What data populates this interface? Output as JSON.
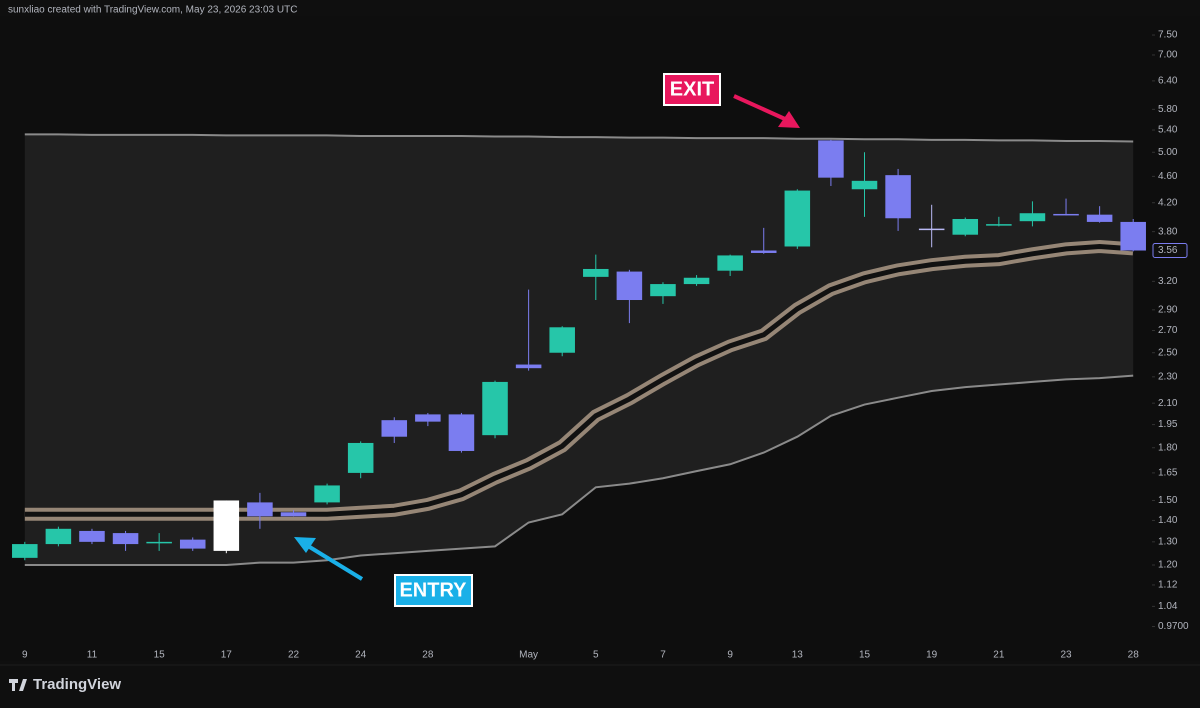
{
  "chart_data": {
    "type": "candlestick",
    "credit": "sunxliao created with TradingView.com, May 23, 2026 23:03 UTC",
    "brand": "TradingView",
    "log_scale": true,
    "categories": [
      "9",
      null,
      "11",
      null,
      "15",
      null,
      "17",
      null,
      "22",
      null,
      "24",
      null,
      "28",
      null,
      null,
      "May",
      null,
      "5",
      null,
      "7",
      null,
      "9",
      null,
      "13",
      null,
      "15",
      null,
      "19",
      null,
      "21",
      null,
      "23",
      null,
      "28"
    ],
    "open": [
      1.23,
      1.29,
      1.35,
      1.34,
      1.3,
      1.31,
      1.26,
      1.49,
      1.44,
      1.49,
      1.65,
      1.98,
      2.02,
      2.02,
      1.88,
      2.4,
      2.5,
      3.25,
      3.31,
      3.04,
      3.17,
      3.32,
      3.56,
      3.61,
      5.21,
      4.4,
      4.62,
      3.84,
      3.76,
      3.89,
      3.94,
      4.04,
      4.03,
      3.93
    ],
    "high": [
      1.3,
      1.37,
      1.36,
      1.35,
      1.34,
      1.32,
      1.5,
      1.54,
      1.45,
      1.59,
      1.84,
      2.0,
      2.03,
      2.03,
      2.27,
      3.11,
      2.74,
      3.51,
      3.33,
      3.19,
      3.27,
      3.51,
      3.85,
      4.4,
      5.22,
      5.0,
      4.72,
      4.17,
      3.99,
      4.0,
      4.22,
      4.26,
      4.15,
      3.97
    ],
    "low": [
      1.22,
      1.28,
      1.29,
      1.26,
      1.26,
      1.26,
      1.25,
      1.36,
      1.42,
      1.48,
      1.62,
      1.83,
      1.94,
      1.77,
      1.86,
      2.35,
      2.47,
      3.0,
      2.77,
      2.96,
      3.15,
      3.26,
      3.52,
      3.58,
      4.45,
      4.0,
      3.81,
      3.6,
      3.74,
      3.87,
      3.87,
      4.02,
      3.92,
      3.55
    ],
    "close": [
      1.29,
      1.36,
      1.3,
      1.29,
      1.3,
      1.27,
      1.5,
      1.42,
      1.42,
      1.58,
      1.83,
      1.87,
      1.97,
      1.78,
      2.26,
      2.37,
      2.73,
      3.34,
      3.0,
      3.17,
      3.24,
      3.5,
      3.53,
      4.38,
      4.58,
      4.53,
      3.98,
      3.83,
      3.97,
      3.9,
      4.05,
      4.02,
      3.93,
      3.56
    ],
    "colors": [
      "#26c6a9",
      "#26c6a9",
      "#7b7df0",
      "#7b7df0",
      "#26c6a9",
      "#7b7df0",
      "#ffffff",
      "#7b7df0",
      "#7b7df0",
      "#26c6a9",
      "#26c6a9",
      "#7b7df0",
      "#7b7df0",
      "#7b7df0",
      "#26c6a9",
      "#7b7df0",
      "#26c6a9",
      "#26c6a9",
      "#7b7df0",
      "#26c6a9",
      "#26c6a9",
      "#26c6a9",
      "#7b7df0",
      "#26c6a9",
      "#7b7df0",
      "#26c6a9",
      "#7b7df0",
      "#b9b9f5",
      "#26c6a9",
      "#26c6a9",
      "#26c6a9",
      "#7b7df0",
      "#7b7df0",
      "#7b7df0"
    ],
    "lines": [
      {
        "color": "#8a8a8a",
        "values": [
          5.32,
          5.32,
          5.31,
          5.31,
          5.31,
          5.31,
          5.3,
          5.3,
          5.3,
          5.3,
          5.29,
          5.29,
          5.29,
          5.29,
          5.28,
          5.28,
          5.27,
          5.27,
          5.26,
          5.26,
          5.25,
          5.25,
          5.25,
          5.24,
          5.24,
          5.23,
          5.23,
          5.22,
          5.22,
          5.21,
          5.21,
          5.2,
          5.2,
          5.19
        ]
      },
      {
        "color": "#c9b29b",
        "values": [
          1.43,
          1.43,
          1.43,
          1.43,
          1.43,
          1.43,
          1.43,
          1.43,
          1.43,
          1.43,
          1.44,
          1.45,
          1.48,
          1.53,
          1.62,
          1.7,
          1.81,
          2.01,
          2.13,
          2.28,
          2.43,
          2.56,
          2.66,
          2.91,
          3.11,
          3.24,
          3.33,
          3.39,
          3.43,
          3.45,
          3.52,
          3.58,
          3.61,
          3.58
        ]
      },
      {
        "color": "#8a8a8a",
        "values": [
          1.2,
          1.2,
          1.2,
          1.2,
          1.2,
          1.2,
          1.2,
          1.21,
          1.21,
          1.22,
          1.24,
          1.25,
          1.26,
          1.27,
          1.28,
          1.39,
          1.43,
          1.57,
          1.59,
          1.62,
          1.66,
          1.7,
          1.77,
          1.87,
          2.01,
          2.09,
          2.14,
          2.19,
          2.22,
          2.24,
          2.26,
          2.28,
          2.29,
          2.31
        ]
      }
    ],
    "last_price": 3.56,
    "annotations": [
      "EXIT",
      "ENTRY"
    ],
    "ylim": [
      0.91,
      7.9
    ],
    "yticks": [
      {
        "value": 7.5,
        "label": "7.50"
      },
      {
        "value": 7.0,
        "label": "7.00"
      },
      {
        "value": 6.4,
        "label": "6.40"
      },
      {
        "value": 5.8,
        "label": "5.80"
      },
      {
        "value": 5.4,
        "label": "5.40"
      },
      {
        "value": 5.0,
        "label": "5.00"
      },
      {
        "value": 4.6,
        "label": "4.60"
      },
      {
        "value": 4.2,
        "label": "4.20"
      },
      {
        "value": 3.8,
        "label": "3.80"
      },
      {
        "value": 3.2,
        "label": "3.20"
      },
      {
        "value": 2.9,
        "label": "2.90"
      },
      {
        "value": 2.7,
        "label": "2.70"
      },
      {
        "value": 2.5,
        "label": "2.50"
      },
      {
        "value": 2.3,
        "label": "2.30"
      },
      {
        "value": 2.1,
        "label": "2.10"
      },
      1.95,
      {
        "value": 1.8,
        "label": "1.80"
      },
      1.65,
      {
        "value": 1.5,
        "label": "1.50"
      },
      {
        "value": 1.4,
        "label": "1.40"
      },
      {
        "value": 1.3,
        "label": "1.30"
      },
      {
        "value": 1.2,
        "label": "1.20"
      },
      1.12,
      1.04,
      {
        "value": 0.97,
        "label": "0.9700"
      }
    ]
  }
}
